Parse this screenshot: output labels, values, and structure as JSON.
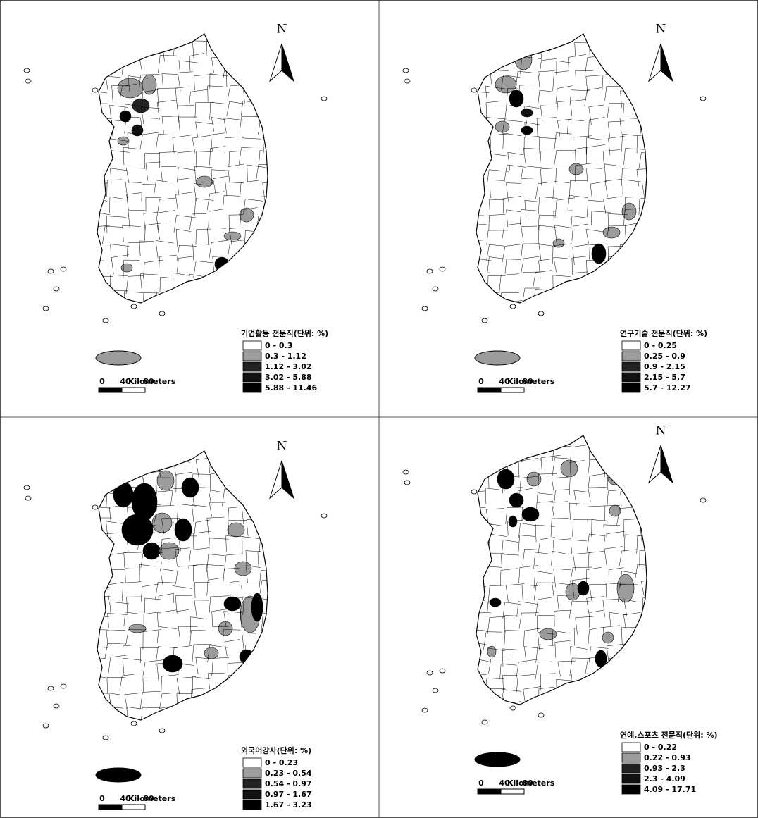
{
  "panels": [
    {
      "north": "N",
      "legend": {
        "title": "기업활동 전문직(단위: %)",
        "items": [
          {
            "label": "0 - 0.3",
            "color": "#ffffff"
          },
          {
            "label": "0.3 - 1.12",
            "color": "#9c9c9c"
          },
          {
            "label": "1.12 - 3.02",
            "color": "#222222"
          },
          {
            "label": "3.02 - 5.88",
            "color": "#111111"
          },
          {
            "label": "5.88 - 11.46",
            "color": "#000000"
          }
        ]
      },
      "scale": {
        "labels": [
          "0",
          "40",
          "80"
        ],
        "unit": "Kilometers"
      }
    },
    {
      "north": "N",
      "legend": {
        "title": "연구기술 전문직(단위: %)",
        "items": [
          {
            "label": "0 - 0.25",
            "color": "#ffffff"
          },
          {
            "label": "0.25 - 0.9",
            "color": "#9c9c9c"
          },
          {
            "label": "0.9 - 2.15",
            "color": "#222222"
          },
          {
            "label": "2.15 - 5.7",
            "color": "#111111"
          },
          {
            "label": "5.7 - 12.27",
            "color": "#000000"
          }
        ]
      },
      "scale": {
        "labels": [
          "0",
          "40",
          "80"
        ],
        "unit": "Kilometers"
      }
    },
    {
      "north": "N",
      "legend": {
        "title": "외국어강사(단위: %)",
        "items": [
          {
            "label": "0 - 0.23",
            "color": "#ffffff"
          },
          {
            "label": "0.23 - 0.54",
            "color": "#9c9c9c"
          },
          {
            "label": "0.54 - 0.97",
            "color": "#222222"
          },
          {
            "label": "0.97 - 1.67",
            "color": "#111111"
          },
          {
            "label": "1.67 - 3.23",
            "color": "#000000"
          }
        ]
      },
      "scale": {
        "labels": [
          "0",
          "40",
          "80"
        ],
        "unit": "Kilometers"
      }
    },
    {
      "north": "N",
      "legend": {
        "title": "연예,스포츠 전문직(단위: %)",
        "items": [
          {
            "label": "0 - 0.22",
            "color": "#ffffff"
          },
          {
            "label": "0.22 - 0.93",
            "color": "#9c9c9c"
          },
          {
            "label": "0.93 - 2.3",
            "color": "#222222"
          },
          {
            "label": "2.3 - 4.09",
            "color": "#111111"
          },
          {
            "label": "4.09 - 17.71",
            "color": "#000000"
          }
        ]
      },
      "scale": {
        "labels": [
          "0",
          "40",
          "80"
        ],
        "unit": "Kilometers"
      }
    }
  ]
}
